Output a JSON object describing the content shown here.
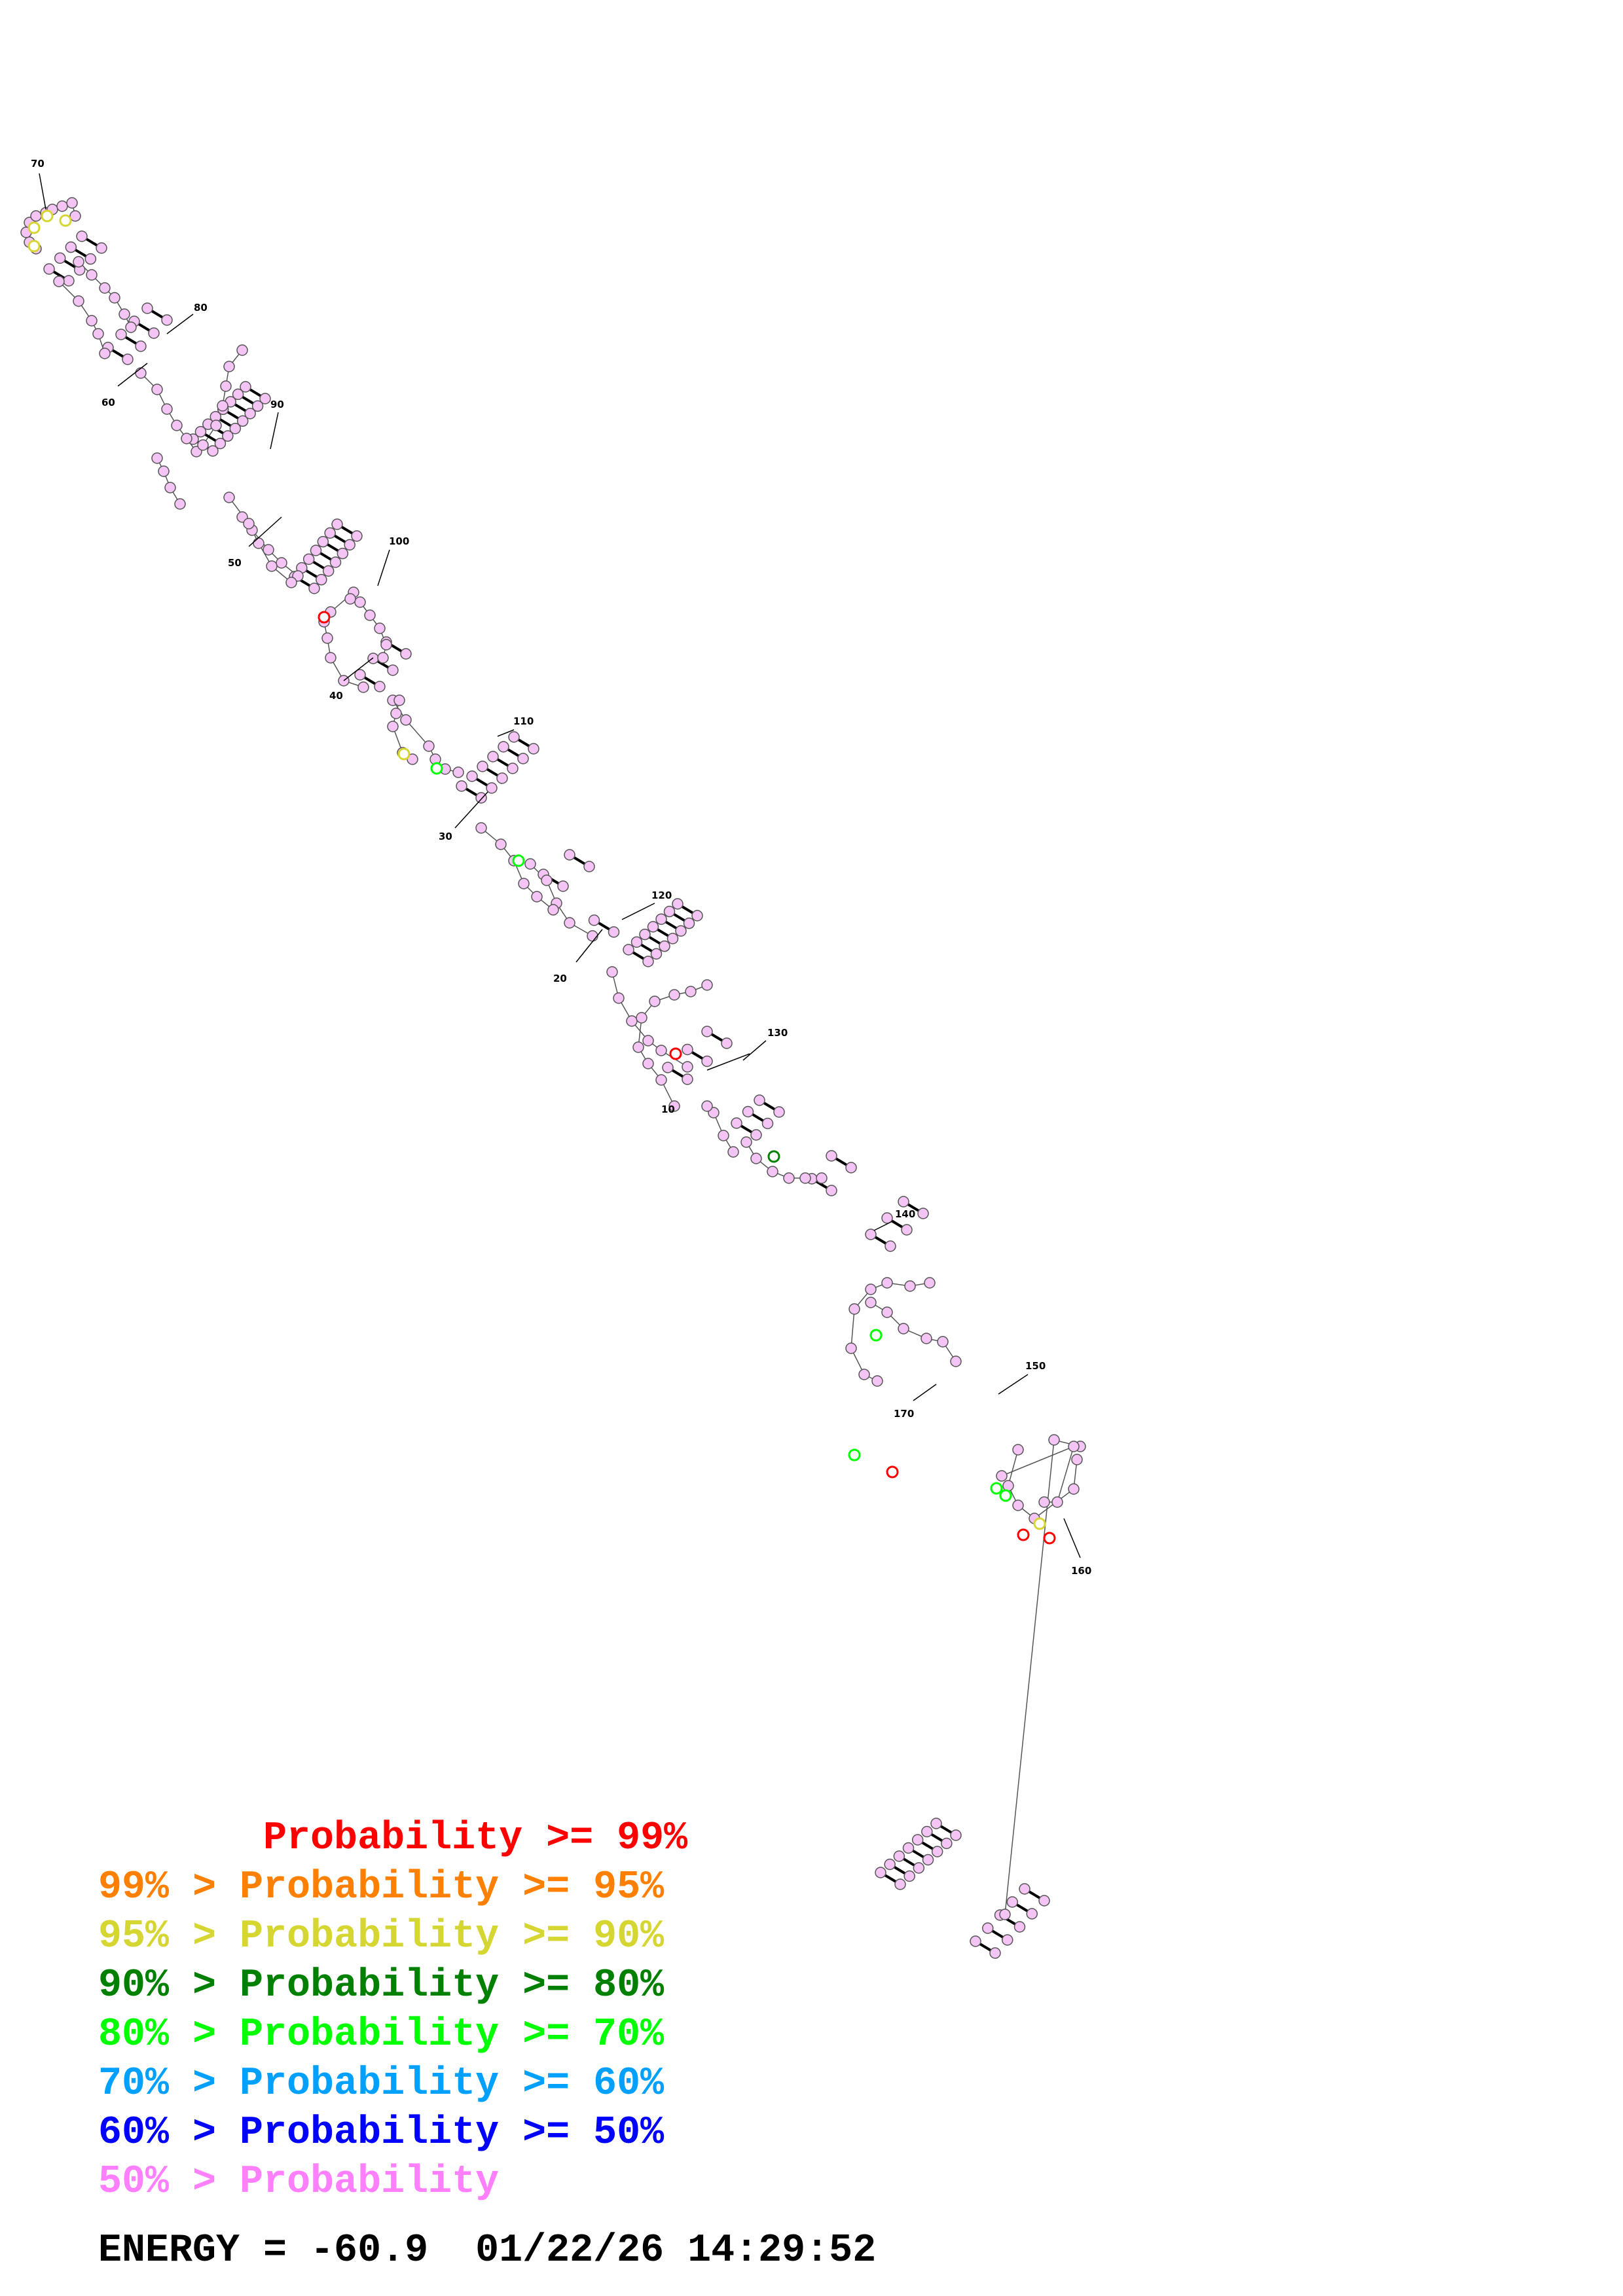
{
  "colors": {
    "p99": "#ff0000",
    "p95": "#ff8000",
    "p90": "#d6d633",
    "p80": "#008000",
    "p70": "#00ff00",
    "p60": "#00a0ff",
    "p50": "#0000ff",
    "low": "#ff80ff",
    "base_fill": "#f4c4f4",
    "line": "#555555"
  },
  "position_labels": [
    "10",
    "20",
    "30",
    "40",
    "50",
    "60",
    "70",
    "80",
    "90",
    "100",
    "110",
    "120",
    "130",
    "140",
    "150",
    "160",
    "170"
  ],
  "legend": [
    {
      "text": "       Probability >= 99%",
      "color_key": "p99"
    },
    {
      "text": "99% > Probability >= 95%",
      "color_key": "p95"
    },
    {
      "text": "95% > Probability >= 90%",
      "color_key": "p90"
    },
    {
      "text": "90% > Probability >= 80%",
      "color_key": "p80"
    },
    {
      "text": "80% > Probability >= 70%",
      "color_key": "p70"
    },
    {
      "text": "70% > Probability >= 60%",
      "color_key": "p60"
    },
    {
      "text": "60% > Probability >= 50%",
      "color_key": "p50"
    },
    {
      "text": "50% > Probability",
      "color_key": "low"
    }
  ],
  "energy_line": "ENERGY = -60.9  01/22/26 14:29:52"
}
